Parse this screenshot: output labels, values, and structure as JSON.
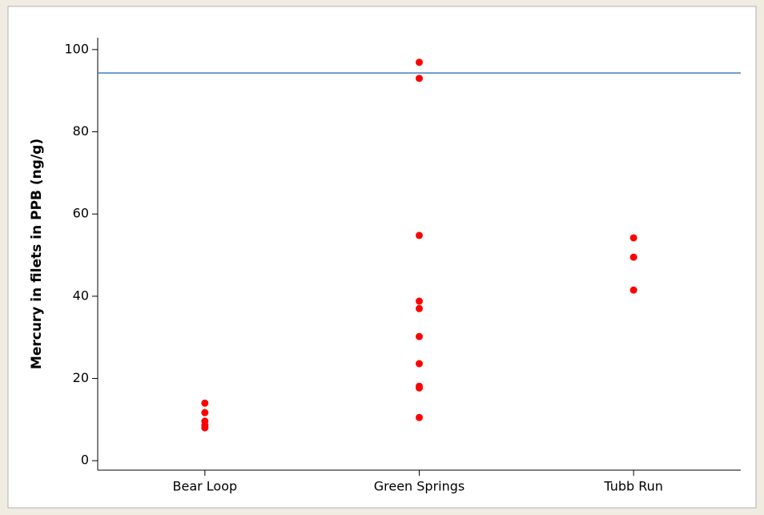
{
  "chart_data": {
    "type": "strip",
    "y_label": "Mercury in filets in PPB (ng/g)",
    "categories": [
      "Bear Loop",
      "Green Springs",
      "Tubb Run"
    ],
    "values": [
      [
        14.0,
        11.7,
        9.6,
        8.6,
        8.0
      ],
      [
        96.9,
        93.0,
        54.8,
        38.8,
        37.0,
        30.2,
        23.6,
        18.1,
        17.7,
        10.5
      ],
      [
        54.2,
        49.5,
        41.5
      ]
    ],
    "color": "#ff0000",
    "reference_line": 94.3,
    "reference_color": "#3f7fbf",
    "ylim": [
      -2.3,
      102.9
    ],
    "yticks": [
      0,
      20,
      40,
      60,
      80,
      100
    ]
  }
}
